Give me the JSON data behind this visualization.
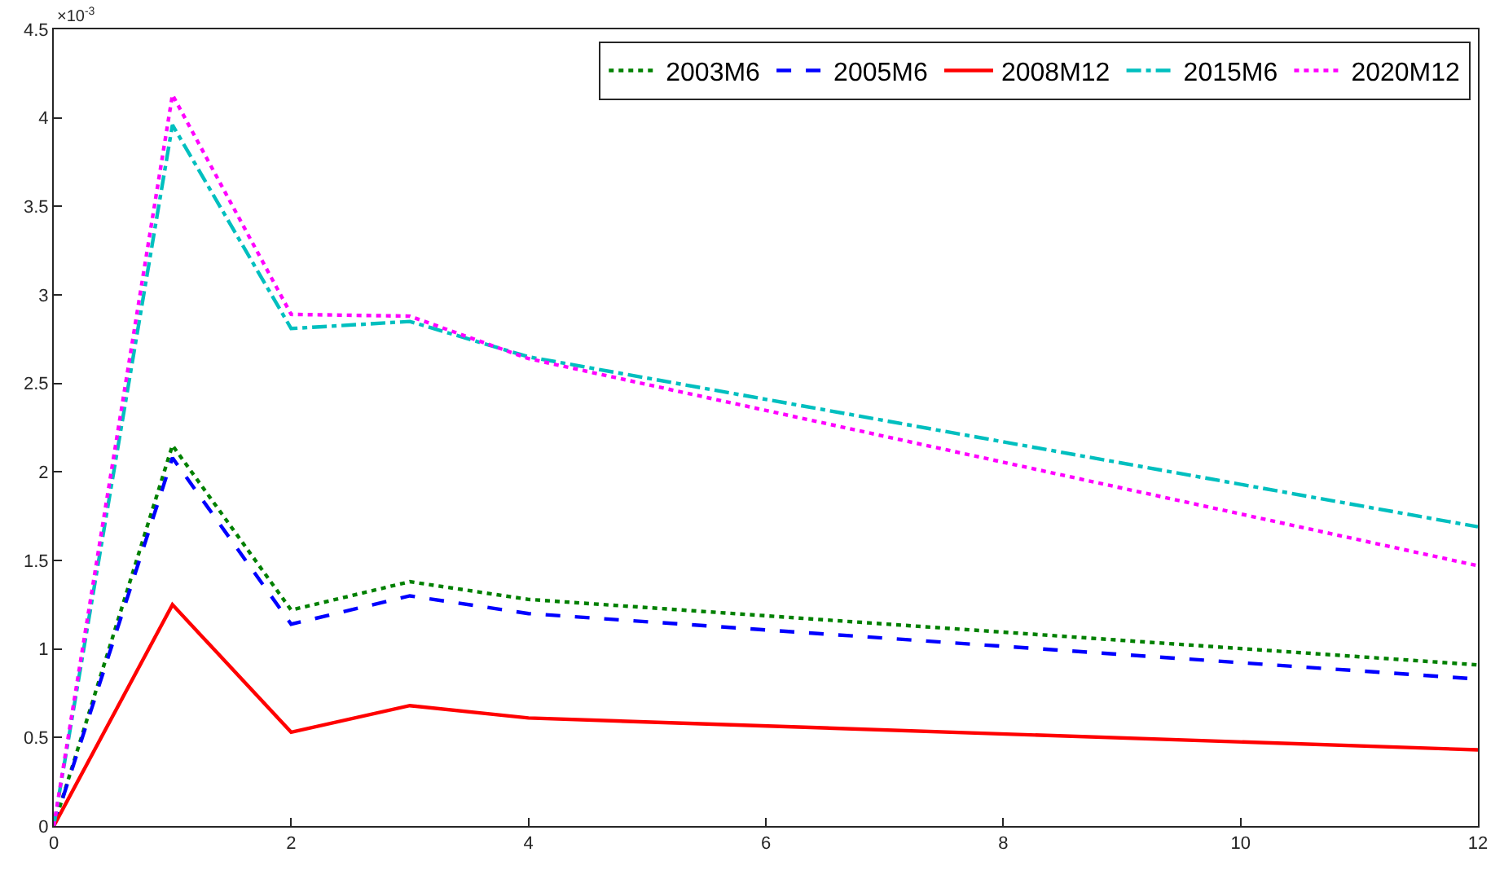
{
  "chart_data": {
    "type": "line",
    "x": [
      0,
      1,
      2,
      3,
      4,
      12
    ],
    "series": [
      {
        "name": "2003M6",
        "color": "#008000",
        "line_style": "dotted",
        "values": [
          0,
          2.15,
          1.22,
          1.38,
          1.28,
          0.91
        ]
      },
      {
        "name": "2005M6",
        "color": "#0000ff",
        "line_style": "dashed",
        "values": [
          0,
          2.08,
          1.14,
          1.3,
          1.2,
          0.83
        ]
      },
      {
        "name": "2008M12",
        "color": "#ff0000",
        "line_style": "solid",
        "values": [
          0,
          1.25,
          0.53,
          0.68,
          0.61,
          0.43
        ]
      },
      {
        "name": "2015M6",
        "color": "#00bfbf",
        "line_style": "dashdot",
        "values": [
          0,
          3.96,
          2.81,
          2.85,
          2.65,
          1.69
        ]
      },
      {
        "name": "2020M12",
        "color": "#ff00ff",
        "line_style": "dotted",
        "values": [
          0,
          4.13,
          2.89,
          2.88,
          2.64,
          1.47
        ]
      }
    ],
    "xlim": [
      0,
      12
    ],
    "xticks": [
      0,
      2,
      4,
      6,
      8,
      10,
      12
    ],
    "ylim": [
      0,
      4.5
    ],
    "yticks": [
      0,
      0.5,
      1,
      1.5,
      2,
      2.5,
      3,
      3.5,
      4,
      4.5
    ],
    "annotations": [
      "×10$^{-3}$"
    ],
    "legend": "top right",
    "marker": "none"
  }
}
